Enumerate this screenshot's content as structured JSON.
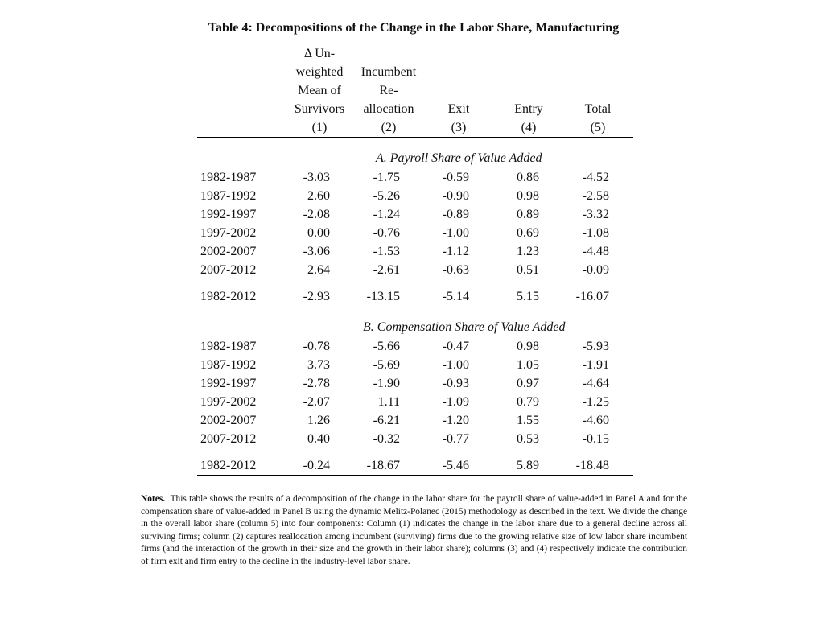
{
  "table_title": "Table 4: Decompositions of the Change in the Labor Share, Manufacturing",
  "columns": [
    {
      "lines": [
        "Δ Un-",
        "weighted",
        "Mean of",
        "Survivors"
      ],
      "number": "(1)"
    },
    {
      "lines": [
        "Incumbent",
        "Re-",
        "allocation"
      ],
      "number": "(2)"
    },
    {
      "lines": [
        "Exit"
      ],
      "number": "(3)"
    },
    {
      "lines": [
        "Entry"
      ],
      "number": "(4)"
    },
    {
      "lines": [
        "Total"
      ],
      "number": "(5)"
    }
  ],
  "panels": [
    {
      "title": "A. Payroll Share of Value Added",
      "rows": [
        {
          "period": "1982-1987",
          "values": [
            "-3.03",
            "-1.75",
            "-0.59",
            "0.86",
            "-4.52"
          ]
        },
        {
          "period": "1987-1992",
          "values": [
            "2.60",
            "-5.26",
            "-0.90",
            "0.98",
            "-2.58"
          ]
        },
        {
          "period": "1992-1997",
          "values": [
            "-2.08",
            "-1.24",
            "-0.89",
            "0.89",
            "-3.32"
          ]
        },
        {
          "period": "1997-2002",
          "values": [
            "0.00",
            "-0.76",
            "-1.00",
            "0.69",
            "-1.08"
          ]
        },
        {
          "period": "2002-2007",
          "values": [
            "-3.06",
            "-1.53",
            "-1.12",
            "1.23",
            "-4.48"
          ]
        },
        {
          "period": "2007-2012",
          "values": [
            "2.64",
            "-2.61",
            "-0.63",
            "0.51",
            "-0.09"
          ]
        }
      ],
      "total": {
        "period": "1982-2012",
        "values": [
          "-2.93",
          "-13.15",
          "-5.14",
          "5.15",
          "-16.07"
        ]
      }
    },
    {
      "title": "B. Compensation Share of Value Added",
      "rows": [
        {
          "period": "1982-1987",
          "values": [
            "-0.78",
            "-5.66",
            "-0.47",
            "0.98",
            "-5.93"
          ]
        },
        {
          "period": "1987-1992",
          "values": [
            "3.73",
            "-5.69",
            "-1.00",
            "1.05",
            "-1.91"
          ]
        },
        {
          "period": "1992-1997",
          "values": [
            "-2.78",
            "-1.90",
            "-0.93",
            "0.97",
            "-4.64"
          ]
        },
        {
          "period": "1997-2002",
          "values": [
            "-2.07",
            "1.11",
            "-1.09",
            "0.79",
            "-1.25"
          ]
        },
        {
          "period": "2002-2007",
          "values": [
            "1.26",
            "-6.21",
            "-1.20",
            "1.55",
            "-4.60"
          ]
        },
        {
          "period": "2007-2012",
          "values": [
            "0.40",
            "-0.32",
            "-0.77",
            "0.53",
            "-0.15"
          ]
        }
      ],
      "total": {
        "period": "1982-2012",
        "values": [
          "-0.24",
          "-18.67",
          "-5.46",
          "5.89",
          "-18.48"
        ]
      }
    }
  ],
  "notes": {
    "label": "Notes.",
    "text": "This table shows the results of a decomposition of the change in the labor share for the payroll share of value-added in Panel A and for the compensation share of value-added in Panel B using the dynamic Melitz-Polanec (2015) methodology as described in the text. We divide the change in the overall labor share (column 5) into four components: Column (1) indicates the change in the labor share due to a general decline across all surviving firms; column (2) captures reallocation among incumbent (surviving) firms due to the growing relative size of low labor share incumbent firms (and the interaction of the growth in their size and the growth in their labor share); columns (3) and (4) respectively indicate the contribution of firm exit and firm entry to the decline in the industry-level labor share."
  }
}
